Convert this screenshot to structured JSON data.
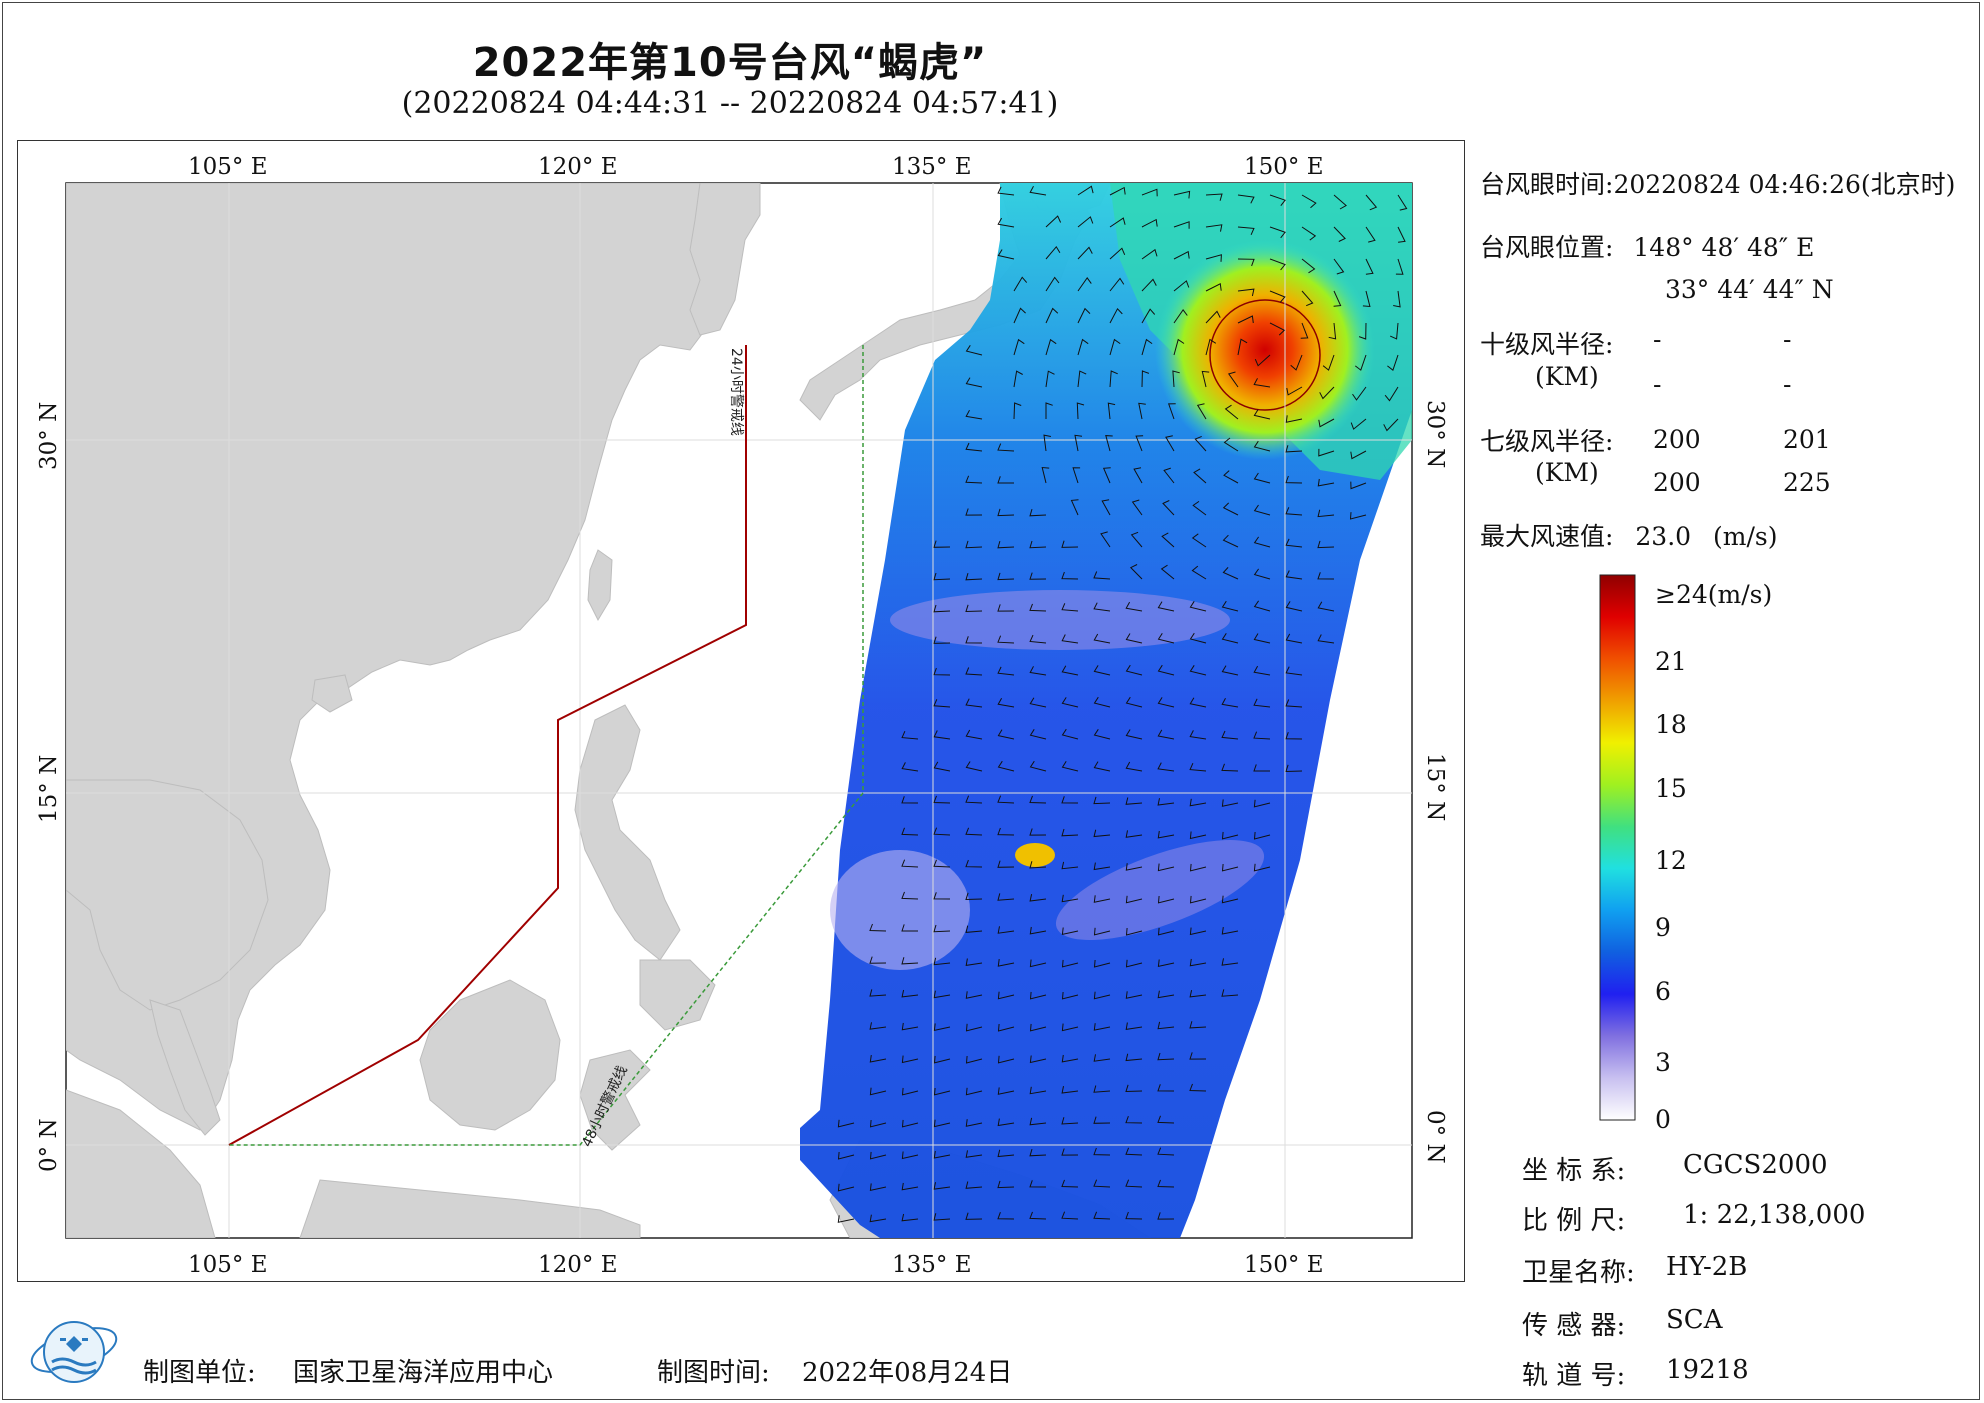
{
  "title": "2022年第10号台风“蝎虎”",
  "subtitle": "(20220824 04:44:31 -- 20220824 04:57:41)",
  "map": {
    "lon_labels": [
      "105° E",
      "120° E",
      "135° E",
      "150° E"
    ],
    "lat_labels": [
      "30° N",
      "15° N",
      "0° N"
    ],
    "warning_24h": "24小时警戒线",
    "warning_48h": "48小时警戒线",
    "land_color": "#d3d3d3",
    "ocean_color": "#ffffff",
    "line_24h_color": "#a00000",
    "line_48h_color": "#3a9a3a"
  },
  "info": {
    "eye_time_label": "台风眼时间:",
    "eye_time_value": "20220824 04:46:26(北京时)",
    "eye_pos_label": "台风眼位置:",
    "eye_lon": "148° 48′ 48″ E",
    "eye_lat": "33° 44′ 44″ N",
    "r10_label": "十级风半径:",
    "r10_unit": "(KM)",
    "r10_values": [
      "-",
      "-",
      "-",
      "-"
    ],
    "r7_label": "七级风半径:",
    "r7_unit": "(KM)",
    "r7_values": [
      "200",
      "201",
      "200",
      "225"
    ],
    "max_wind_label": "最大风速值:",
    "max_wind_value": "23.0",
    "max_wind_unit": "(m/s)"
  },
  "colorbar": {
    "labels": [
      "≥24(m/s)",
      "21",
      "18",
      "15",
      "12",
      "9",
      "6",
      "3",
      "0"
    ],
    "stops": [
      "#ffffff",
      "#c8c0f0",
      "#8070e0",
      "#2020f0",
      "#1060e0",
      "#10a0f0",
      "#20e0e0",
      "#40e080",
      "#a0f020",
      "#f0f000",
      "#f0a000",
      "#f05000",
      "#e00000",
      "#900000"
    ]
  },
  "meta": {
    "crs_label": "坐 标 系:",
    "crs_value": "CGCS2000",
    "scale_label": "比 例 尺:",
    "scale_value": "1: 22,138,000",
    "sat_label": "卫星名称:",
    "sat_value": "HY-2B",
    "sensor_label": "传 感 器:",
    "sensor_value": "SCA",
    "orbit_label": "轨 道 号:",
    "orbit_value": "19218"
  },
  "footer": {
    "unit_label": "制图单位:",
    "unit_value": "国家卫星海洋应用中心",
    "date_label": "制图时间:",
    "date_value": "2022年08月24日"
  }
}
